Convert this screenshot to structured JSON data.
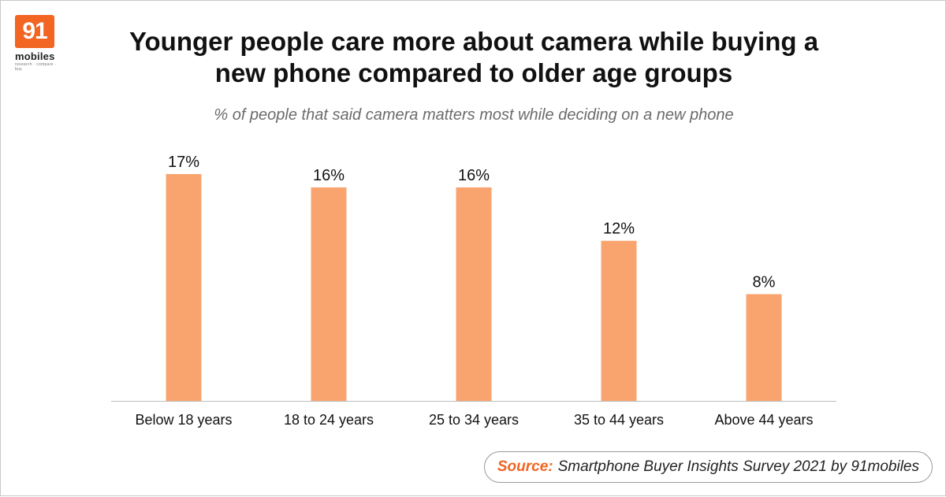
{
  "logo": {
    "number": "91",
    "word": "mobiles",
    "tagline": "research · compare · buy",
    "color": "#F26522"
  },
  "header": {
    "title_line1": "Younger people care more about camera while buying a",
    "title_line2": "new phone compared to older age groups",
    "subtitle": "% of people that said camera matters most while deciding on a new phone"
  },
  "source": {
    "label": "Source:",
    "text": "Smartphone Buyer Insights Survey 2021 by 91mobiles",
    "label_color": "#F26522"
  },
  "chart_data": {
    "type": "bar",
    "categories": [
      "Below 18 years",
      "18 to 24 years",
      "25 to 34 years",
      "35 to 44 years",
      "Above 44 years"
    ],
    "values": [
      17,
      16,
      16,
      12,
      8
    ],
    "data_labels": [
      "17%",
      "16%",
      "16%",
      "12%",
      "8%"
    ],
    "unit": "%",
    "ylim": [
      0,
      17
    ],
    "grid": false,
    "legend": "none",
    "bar_color": "#F9A36F",
    "axis_color": "#bdbdbd"
  }
}
